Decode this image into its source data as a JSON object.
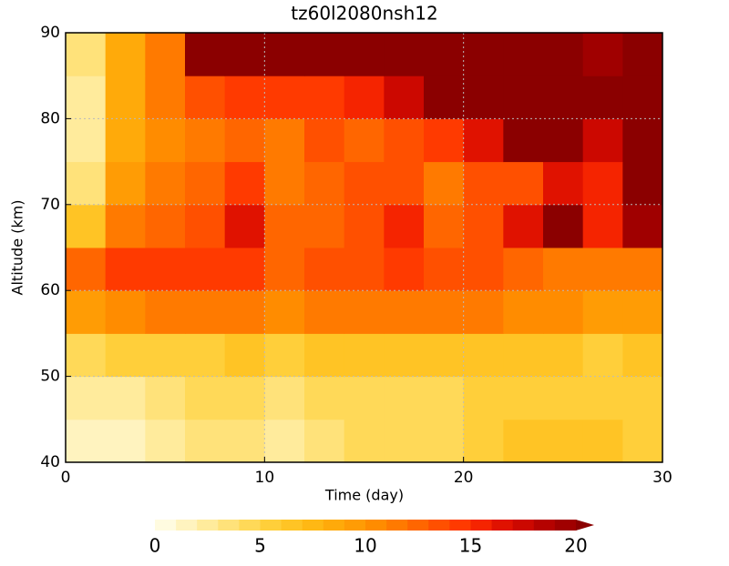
{
  "chart_data": {
    "type": "heatmap",
    "title": "tz60l2080nsh12",
    "x_label": "Time (day)",
    "y_label": "Altitude (km)",
    "x": [
      1,
      3,
      5,
      7,
      9,
      11,
      13,
      15,
      17,
      19,
      21,
      23,
      25,
      27,
      29
    ],
    "y": [
      42.5,
      47.5,
      52.5,
      57.5,
      62.5,
      67.5,
      72.5,
      77.5,
      82.5,
      87.5
    ],
    "values": [
      [
        1,
        1,
        2,
        3,
        3,
        2,
        3,
        4,
        4,
        4,
        5,
        6,
        6,
        6,
        5
      ],
      [
        2,
        2,
        3,
        4,
        4,
        3,
        4,
        4,
        4,
        4,
        5,
        5,
        5,
        5,
        5
      ],
      [
        4,
        5,
        5,
        5,
        6,
        5,
        6,
        6,
        6,
        6,
        6,
        6,
        6,
        5,
        6
      ],
      [
        9,
        10,
        11,
        11,
        11,
        10,
        11,
        11,
        11,
        11,
        11,
        10,
        10,
        9,
        9
      ],
      [
        12,
        14,
        14,
        14,
        14,
        12,
        13,
        13,
        14,
        13,
        13,
        12,
        11,
        11,
        11
      ],
      [
        6,
        11,
        12,
        13,
        16,
        12,
        12,
        13,
        15,
        12,
        13,
        16,
        20,
        15,
        19
      ],
      [
        3,
        9,
        11,
        12,
        14,
        11,
        12,
        13,
        13,
        11,
        13,
        13,
        16,
        15,
        20
      ],
      [
        2,
        8,
        10,
        11,
        12,
        11,
        13,
        12,
        13,
        14,
        16,
        21,
        21,
        17,
        21
      ],
      [
        2,
        8,
        11,
        13,
        14,
        14,
        14,
        15,
        17,
        21,
        21,
        21,
        21,
        21,
        21
      ],
      [
        3,
        8,
        11,
        20,
        21,
        21,
        21,
        21,
        21,
        21,
        21,
        21,
        21,
        19,
        21
      ]
    ],
    "xlim": [
      0,
      30
    ],
    "ylim": [
      40,
      90
    ],
    "xticks": [
      0,
      10,
      20,
      30
    ],
    "yticks": [
      40,
      50,
      60,
      70,
      80,
      90
    ],
    "grid": true,
    "colorbar": {
      "levels": [
        0,
        1,
        2,
        3,
        4,
        5,
        6,
        7,
        8,
        9,
        10,
        11,
        12,
        13,
        14,
        15,
        16,
        17,
        18,
        19,
        20
      ],
      "colors": [
        "#fffbe0",
        "#fff3bf",
        "#ffeb9c",
        "#ffe27a",
        "#ffd958",
        "#ffcf3a",
        "#ffc425",
        "#ffb814",
        "#ffaa0a",
        "#ff9c05",
        "#ff8c00",
        "#ff7a00",
        "#ff6600",
        "#ff5000",
        "#ff3a00",
        "#f52400",
        "#e01200",
        "#cc0800",
        "#b50200",
        "#a00000",
        "#8b0000"
      ],
      "ticks": [
        0,
        5,
        10,
        15,
        20
      ]
    }
  }
}
